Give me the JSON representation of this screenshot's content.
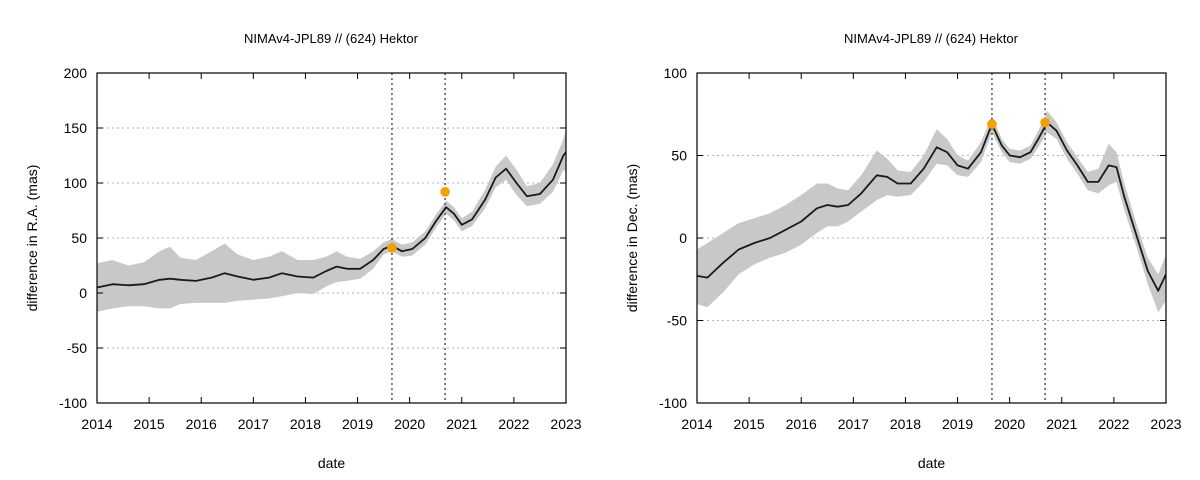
{
  "chart_data": [
    {
      "type": "line",
      "title": "NIMAv4-JPL89 // (624) Hektor",
      "xlabel": "date",
      "ylabel": "difference in R.A. (mas)",
      "xlim": [
        2014,
        2023
      ],
      "ylim": [
        -100,
        200
      ],
      "xticks": [
        2014,
        2015,
        2016,
        2017,
        2018,
        2019,
        2020,
        2021,
        2022,
        2023
      ],
      "yticks": [
        -100,
        -50,
        0,
        50,
        100,
        150,
        200
      ],
      "grid": "horizontal dotted",
      "vlines": [
        2019.66,
        2020.68
      ],
      "series": [
        {
          "style": "line",
          "color": "#1a1a1a",
          "x": [
            2014.0,
            2014.3,
            2014.6,
            2014.9,
            2015.2,
            2015.4,
            2015.6,
            2015.9,
            2016.2,
            2016.45,
            2016.7,
            2017.0,
            2017.3,
            2017.55,
            2017.85,
            2018.15,
            2018.4,
            2018.6,
            2018.8,
            2019.05,
            2019.3,
            2019.5,
            2019.66,
            2019.85,
            2020.05,
            2020.3,
            2020.5,
            2020.7,
            2020.85,
            2021.0,
            2021.2,
            2021.45,
            2021.65,
            2021.85,
            2022.05,
            2022.25,
            2022.5,
            2022.75,
            2022.95,
            2023.0
          ],
          "y": [
            5,
            8,
            7,
            8,
            12,
            13,
            12,
            11,
            14,
            18,
            15,
            12,
            14,
            18,
            15,
            14,
            20,
            24,
            22,
            22,
            30,
            40,
            43,
            38,
            40,
            50,
            65,
            78,
            72,
            62,
            67,
            85,
            105,
            113,
            100,
            88,
            90,
            103,
            125,
            128
          ]
        },
        {
          "style": "band",
          "color": "#c8c8c8",
          "x": [
            2014.0,
            2014.3,
            2014.6,
            2014.9,
            2015.2,
            2015.4,
            2015.6,
            2015.9,
            2016.2,
            2016.45,
            2016.7,
            2017.0,
            2017.3,
            2017.55,
            2017.85,
            2018.15,
            2018.4,
            2018.6,
            2018.8,
            2019.05,
            2019.3,
            2019.5,
            2019.66,
            2019.85,
            2020.05,
            2020.3,
            2020.5,
            2020.7,
            2020.85,
            2021.0,
            2021.2,
            2021.45,
            2021.65,
            2021.85,
            2022.05,
            2022.25,
            2022.5,
            2022.75,
            2022.95,
            2023.0
          ],
          "upper": [
            27,
            30,
            25,
            28,
            38,
            42,
            32,
            30,
            38,
            45,
            35,
            30,
            33,
            38,
            30,
            30,
            33,
            38,
            33,
            31,
            38,
            46,
            49,
            44,
            46,
            56,
            71,
            84,
            78,
            68,
            74,
            94,
            115,
            125,
            112,
            97,
            100,
            117,
            140,
            148
          ],
          "lower": [
            -17,
            -14,
            -12,
            -12,
            -14,
            -14,
            -10,
            -9,
            -9,
            -9,
            -7,
            -6,
            -5,
            -3,
            0,
            -1,
            6,
            10,
            11,
            13,
            22,
            35,
            38,
            33,
            34,
            44,
            59,
            72,
            66,
            56,
            61,
            77,
            96,
            103,
            89,
            79,
            81,
            92,
            112,
            110
          ]
        },
        {
          "style": "points",
          "color": "#f5a000",
          "x": [
            2019.66,
            2020.68
          ],
          "y": [
            41,
            92
          ]
        }
      ]
    },
    {
      "type": "line",
      "title": "NIMAv4-JPL89 // (624) Hektor",
      "xlabel": "date",
      "ylabel": "difference in Dec. (mas)",
      "xlim": [
        2014,
        2023
      ],
      "ylim": [
        -100,
        100
      ],
      "xticks": [
        2014,
        2015,
        2016,
        2017,
        2018,
        2019,
        2020,
        2021,
        2022,
        2023
      ],
      "yticks": [
        -100,
        -50,
        0,
        50,
        100
      ],
      "grid": "horizontal dotted",
      "vlines": [
        2019.66,
        2020.68
      ],
      "series": [
        {
          "style": "line",
          "color": "#1a1a1a",
          "x": [
            2014.0,
            2014.2,
            2014.5,
            2014.8,
            2015.1,
            2015.4,
            2015.7,
            2016.0,
            2016.3,
            2016.5,
            2016.7,
            2016.9,
            2017.15,
            2017.45,
            2017.65,
            2017.85,
            2018.1,
            2018.35,
            2018.6,
            2018.8,
            2019.0,
            2019.2,
            2019.45,
            2019.66,
            2019.85,
            2020.0,
            2020.2,
            2020.4,
            2020.55,
            2020.72,
            2020.9,
            2021.1,
            2021.3,
            2021.5,
            2021.7,
            2021.9,
            2022.05,
            2022.2,
            2022.45,
            2022.65,
            2022.85,
            2023.0
          ],
          "y": [
            -23,
            -24,
            -15,
            -7,
            -3,
            0,
            5,
            10,
            18,
            20,
            19,
            20,
            27,
            38,
            37,
            33,
            33,
            42,
            55,
            52,
            44,
            42,
            52,
            69,
            56,
            50,
            49,
            52,
            60,
            70,
            65,
            53,
            44,
            34,
            34,
            44,
            43,
            25,
            0,
            -20,
            -32,
            -22
          ]
        },
        {
          "style": "band",
          "color": "#c8c8c8",
          "x": [
            2014.0,
            2014.2,
            2014.5,
            2014.8,
            2015.1,
            2015.4,
            2015.7,
            2016.0,
            2016.3,
            2016.5,
            2016.7,
            2016.9,
            2017.15,
            2017.45,
            2017.65,
            2017.85,
            2018.1,
            2018.35,
            2018.6,
            2018.8,
            2019.0,
            2019.2,
            2019.45,
            2019.66,
            2019.85,
            2020.0,
            2020.2,
            2020.4,
            2020.55,
            2020.72,
            2020.9,
            2021.1,
            2021.3,
            2021.5,
            2021.7,
            2021.9,
            2022.05,
            2022.2,
            2022.45,
            2022.65,
            2022.85,
            2023.0
          ],
          "upper": [
            -7,
            -3,
            3,
            9,
            12,
            15,
            20,
            26,
            33,
            33,
            30,
            29,
            38,
            53,
            48,
            41,
            40,
            50,
            66,
            60,
            50,
            47,
            58,
            74,
            60,
            54,
            53,
            56,
            65,
            77,
            70,
            58,
            49,
            40,
            42,
            57,
            52,
            33,
            7,
            -12,
            -22,
            -10
          ],
          "lower": [
            -40,
            -42,
            -33,
            -22,
            -16,
            -12,
            -9,
            -4,
            3,
            7,
            7,
            10,
            16,
            23,
            26,
            25,
            26,
            34,
            45,
            44,
            38,
            37,
            46,
            64,
            52,
            46,
            45,
            48,
            55,
            64,
            60,
            48,
            39,
            29,
            27,
            32,
            34,
            17,
            -7,
            -28,
            -45,
            -38
          ]
        },
        {
          "style": "points",
          "color": "#f5a000",
          "x": [
            2019.66,
            2020.68
          ],
          "y": [
            69,
            70
          ]
        }
      ]
    }
  ]
}
